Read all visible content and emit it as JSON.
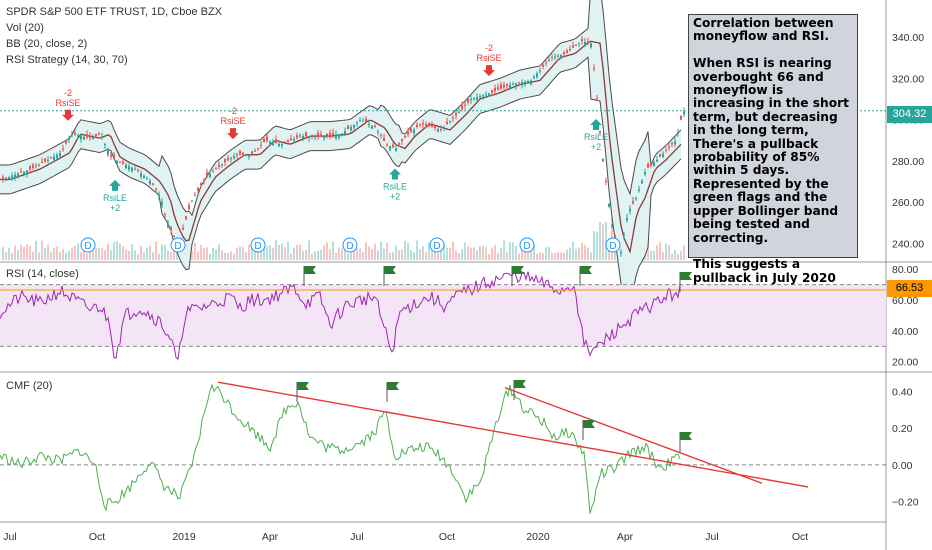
{
  "header": {
    "symbol_line": "SPDR S&P 500 ETF TRUST, 1D, Cboe BZX",
    "indicators": [
      "Vol (20)",
      "BB (20, close, 2)",
      "RSI Strategy (14, 30, 70)"
    ]
  },
  "note": {
    "text": "Correlation between moneyflow and RSI.\n\nWhen RSI is nearing overbought 66 and moneyflow is increasing in the short term, but decreasing in the long term, There's a pullback probability of 85% within 5 days. Represented by the green flags and the upper Bollinger band being tested and correcting.\n\nThis suggests a pullback in July 2020"
  },
  "colors": {
    "price_up": "#26a69a",
    "price_down": "#ef5350",
    "bb_band": "#4a4a4a",
    "bb_fill": "#e0f2f1",
    "bb_mid": "#8b3a3a",
    "rsi_line": "#9c27b0",
    "rsi_fill": "#f3e5f5",
    "cmf_line": "#4caf50",
    "trend_line": "#e53935",
    "flag": "#2e7d32",
    "last_price": "#26a69a",
    "rsi_tag": "#ff9800"
  },
  "chart_data": [
    {
      "type": "candlestick",
      "title": "SPDR S&P 500 ETF TRUST, 1D, Cboe BZX",
      "ylim": [
        232,
        356
      ],
      "y_ticks": [
        240,
        260,
        280,
        300,
        320,
        340
      ],
      "last_price": "304.32",
      "x_labels": [
        "Jul",
        "Oct",
        "2019",
        "Apr",
        "Jul",
        "Oct",
        "2020",
        "Apr",
        "Jul",
        "Oct"
      ],
      "close_path": {
        "x": [
          0,
          30,
          60,
          70,
          90,
          100,
          105,
          110,
          120,
          135,
          150,
          160,
          165,
          172,
          178,
          190,
          205,
          220,
          235,
          250,
          265,
          280,
          300,
          320,
          340,
          360,
          375,
          385,
          395,
          405,
          420,
          440,
          455,
          470,
          490,
          510,
          530,
          550,
          565,
          580,
          590,
          593,
          597,
          600,
          605,
          612,
          620,
          627,
          635,
          645,
          655,
          665,
          675,
          682
        ],
        "y": [
          271,
          276,
          284,
          293,
          291,
          293,
          287,
          282,
          279,
          276,
          270,
          262,
          252,
          244,
          240,
          260,
          272,
          278,
          283,
          283,
          290,
          288,
          292,
          292,
          293,
          300,
          296,
          288,
          286,
          292,
          298,
          295,
          302,
          310,
          313,
          317,
          319,
          330,
          332,
          338,
          337,
          325,
          305,
          288,
          270,
          245,
          236,
          255,
          262,
          276,
          280,
          285,
          290,
          304
        ]
      },
      "signals": [
        {
          "label": "RsiSE",
          "value": "-2",
          "x": 68,
          "direction": "down"
        },
        {
          "label": "RsiLE",
          "value": "+2",
          "x": 115,
          "direction": "up"
        },
        {
          "label": "RsiSE",
          "value": "-2",
          "x": 233,
          "direction": "down"
        },
        {
          "label": "RsiLE",
          "value": "+2",
          "x": 395,
          "direction": "up"
        },
        {
          "label": "RsiSE",
          "value": "-2",
          "x": 489,
          "direction": "down"
        },
        {
          "label": "RsiLE",
          "value": "+2",
          "x": 596,
          "direction": "up"
        }
      ],
      "dividend_markers": {
        "label": "D",
        "x": [
          88,
          178,
          258,
          350,
          437,
          527,
          613
        ]
      }
    },
    {
      "type": "line",
      "title": "RSI (14, close)",
      "ylim": [
        14,
        84
      ],
      "y_ticks": [
        20,
        40,
        60,
        80
      ],
      "y_tick_labels": [
        "20.00",
        "40.00",
        "60.00",
        "80.00"
      ],
      "bands": [
        30,
        70
      ],
      "last_value": "66.53",
      "x": [
        0,
        20,
        40,
        60,
        75,
        90,
        100,
        110,
        115,
        125,
        140,
        160,
        170,
        178,
        185,
        200,
        215,
        230,
        240,
        250,
        265,
        280,
        295,
        305,
        320,
        330,
        345,
        360,
        375,
        385,
        392,
        400,
        415,
        430,
        445,
        460,
        475,
        490,
        505,
        515,
        530,
        545,
        560,
        575,
        580,
        585,
        590,
        595,
        605,
        620,
        635,
        650,
        665,
        680
      ],
      "y": [
        52,
        62,
        58,
        66,
        60,
        54,
        56,
        45,
        22,
        50,
        55,
        46,
        36,
        18,
        52,
        55,
        58,
        62,
        55,
        60,
        60,
        64,
        68,
        58,
        62,
        44,
        56,
        60,
        62,
        40,
        26,
        52,
        58,
        62,
        56,
        64,
        68,
        72,
        75,
        76,
        74,
        70,
        66,
        70,
        45,
        30,
        26,
        28,
        34,
        42,
        50,
        56,
        62,
        66
      ]
    },
    {
      "type": "line",
      "title": "CMF (20)",
      "ylim": [
        -0.3,
        0.5
      ],
      "y_ticks": [
        -0.2,
        0.0,
        0.2,
        0.4
      ],
      "y_tick_labels": [
        "−0.20",
        "0.00",
        "0.20",
        "0.40"
      ],
      "x": [
        0,
        20,
        40,
        60,
        80,
        95,
        105,
        115,
        130,
        150,
        165,
        180,
        195,
        210,
        220,
        235,
        250,
        270,
        285,
        298,
        310,
        325,
        340,
        360,
        375,
        385,
        395,
        410,
        425,
        440,
        455,
        465,
        480,
        500,
        510,
        525,
        540,
        555,
        570,
        585,
        590,
        600,
        615,
        630,
        645,
        660,
        672,
        680
      ],
      "y": [
        0.05,
        0.0,
        0.05,
        0.02,
        0.08,
        0.0,
        -0.22,
        -0.2,
        -0.12,
        0.02,
        -0.12,
        -0.18,
        0.05,
        0.42,
        0.4,
        0.28,
        0.2,
        0.1,
        0.3,
        0.35,
        0.15,
        0.1,
        0.08,
        0.12,
        0.18,
        0.3,
        0.05,
        0.08,
        0.1,
        0.05,
        -0.05,
        -0.18,
        -0.1,
        0.3,
        0.42,
        0.3,
        0.25,
        0.15,
        0.18,
        0.05,
        -0.28,
        -0.05,
        -0.02,
        0.06,
        0.1,
        -0.02,
        0.02,
        0.05
      ],
      "trendlines": [
        {
          "x": [
            218,
            808
          ],
          "y": [
            0.45,
            -0.12
          ]
        },
        {
          "x": [
            505,
            762
          ],
          "y": [
            0.42,
            -0.1
          ]
        }
      ]
    }
  ],
  "flags": [
    {
      "pane": "rsi",
      "x": 304
    },
    {
      "pane": "rsi",
      "x": 384
    },
    {
      "pane": "rsi",
      "x": 512
    },
    {
      "pane": "rsi",
      "x": 580
    },
    {
      "pane": "rsi",
      "x": 680
    },
    {
      "pane": "cmf",
      "x": 297
    },
    {
      "pane": "cmf",
      "x": 387
    },
    {
      "pane": "cmf",
      "x": 514
    },
    {
      "pane": "cmf",
      "x": 583
    },
    {
      "pane": "cmf",
      "x": 680
    }
  ]
}
